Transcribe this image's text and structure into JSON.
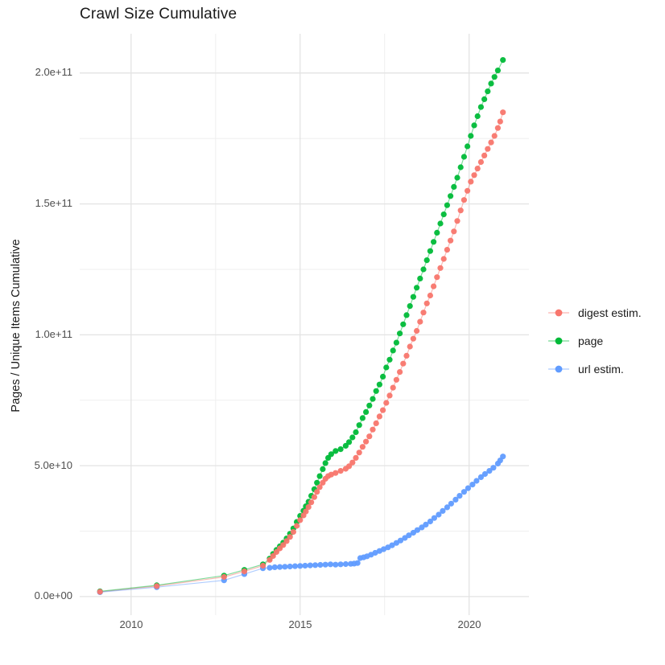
{
  "title": "Crawl Size Cumulative",
  "y_axis_title": "Pages / Unique Items Cumulative",
  "x_ticks": [
    "2010",
    "2015",
    "2020"
  ],
  "y_ticks": [
    "0.0e+00",
    "5.0e+10",
    "1.0e+11",
    "1.5e+11",
    "2.0e+11"
  ],
  "legend": {
    "items": [
      {
        "label": "digest estim.",
        "color": "#F8766D"
      },
      {
        "label": "page",
        "color": "#00BA38"
      },
      {
        "label": "url estim.",
        "color": "#619CFF"
      }
    ]
  },
  "colors": {
    "background": "#ffffff",
    "grid_major": "#e3e3e3",
    "grid_minor": "#efefef",
    "tick_text": "#4d4d4d",
    "title_text": "#1a1a1a"
  },
  "chart_data": {
    "type": "scatter",
    "title": "Crawl Size Cumulative",
    "xlabel": "",
    "ylabel": "Pages / Unique Items Cumulative",
    "xlim": [
      2008.48,
      2021.77
    ],
    "ylim": [
      -7100000000.0,
      215000000000.0
    ],
    "x_major_ticks": [
      2010,
      2015,
      2020
    ],
    "x_minor_ticks": [
      2012.5,
      2017.5
    ],
    "y_major_ticks": [
      0,
      50000000000.0,
      100000000000.0,
      150000000000.0,
      200000000000.0
    ],
    "y_minor_ticks": [
      25000000000.0,
      75000000000.0,
      125000000000.0,
      175000000000.0
    ],
    "grid": true,
    "legend_position": "right",
    "series": [
      {
        "name": "digest estim.",
        "color": "#F8766D",
        "points": [
          [
            2009.08,
            1800000000.0
          ],
          [
            2010.76,
            4000000000.0
          ],
          [
            2012.75,
            7500000000.0
          ],
          [
            2013.35,
            9600000000.0
          ],
          [
            2013.9,
            11800000000.0
          ],
          [
            2014.1,
            14000000000.0
          ],
          [
            2014.2,
            15500000000.0
          ],
          [
            2014.3,
            17000000000.0
          ],
          [
            2014.4,
            18400000000.0
          ],
          [
            2014.5,
            19700000000.0
          ],
          [
            2014.6,
            21200000000.0
          ],
          [
            2014.7,
            22800000000.0
          ],
          [
            2014.8,
            24700000000.0
          ],
          [
            2014.9,
            27000000000.0
          ],
          [
            2015.0,
            29200000000.0
          ],
          [
            2015.1,
            31000000000.0
          ],
          [
            2015.17,
            32500000000.0
          ],
          [
            2015.25,
            34200000000.0
          ],
          [
            2015.33,
            36000000000.0
          ],
          [
            2015.42,
            38000000000.0
          ],
          [
            2015.5,
            40000000000.0
          ],
          [
            2015.58,
            41800000000.0
          ],
          [
            2015.67,
            43500000000.0
          ],
          [
            2015.75,
            45000000000.0
          ],
          [
            2015.83,
            46000000000.0
          ],
          [
            2015.92,
            46600000000.0
          ],
          [
            2016.05,
            47200000000.0
          ],
          [
            2016.2,
            48000000000.0
          ],
          [
            2016.35,
            48800000000.0
          ],
          [
            2016.45,
            49800000000.0
          ],
          [
            2016.55,
            51200000000.0
          ],
          [
            2016.65,
            53000000000.0
          ],
          [
            2016.75,
            55000000000.0
          ],
          [
            2016.85,
            57200000000.0
          ],
          [
            2016.95,
            59200000000.0
          ],
          [
            2017.05,
            61200000000.0
          ],
          [
            2017.15,
            63800000000.0
          ],
          [
            2017.25,
            66200000000.0
          ],
          [
            2017.35,
            68800000000.0
          ],
          [
            2017.45,
            71200000000.0
          ],
          [
            2017.55,
            74000000000.0
          ],
          [
            2017.65,
            76800000000.0
          ],
          [
            2017.75,
            79800000000.0
          ],
          [
            2017.85,
            82800000000.0
          ],
          [
            2017.95,
            85800000000.0
          ],
          [
            2018.05,
            89000000000.0
          ],
          [
            2018.15,
            92000000000.0
          ],
          [
            2018.25,
            95500000000.0
          ],
          [
            2018.35,
            98500000000.0
          ],
          [
            2018.45,
            101500000000.0
          ],
          [
            2018.55,
            105000000000.0
          ],
          [
            2018.65,
            108500000000.0
          ],
          [
            2018.75,
            112000000000.0
          ],
          [
            2018.85,
            115000000000.0
          ],
          [
            2018.95,
            118500000000.0
          ],
          [
            2019.05,
            122000000000.0
          ],
          [
            2019.15,
            125500000000.0
          ],
          [
            2019.25,
            129000000000.0
          ],
          [
            2019.35,
            132500000000.0
          ],
          [
            2019.45,
            136000000000.0
          ],
          [
            2019.55,
            139500000000.0
          ],
          [
            2019.65,
            143500000000.0
          ],
          [
            2019.75,
            147500000000.0
          ],
          [
            2019.85,
            151500000000.0
          ],
          [
            2019.95,
            155000000000.0
          ],
          [
            2020.05,
            158500000000.0
          ],
          [
            2020.15,
            161000000000.0
          ],
          [
            2020.25,
            163500000000.0
          ],
          [
            2020.35,
            166000000000.0
          ],
          [
            2020.45,
            168500000000.0
          ],
          [
            2020.55,
            171000000000.0
          ],
          [
            2020.65,
            173500000000.0
          ],
          [
            2020.75,
            176000000000.0
          ],
          [
            2020.85,
            179000000000.0
          ],
          [
            2020.92,
            181500000000.0
          ],
          [
            2021.0,
            185000000000.0
          ]
        ]
      },
      {
        "name": "page",
        "color": "#00BA38",
        "points": [
          [
            2009.08,
            2000000000.0
          ],
          [
            2010.76,
            4300000000.0
          ],
          [
            2012.75,
            8000000000.0
          ],
          [
            2013.35,
            10200000000.0
          ],
          [
            2013.9,
            12300000000.0
          ],
          [
            2014.1,
            14500000000.0
          ],
          [
            2014.2,
            16300000000.0
          ],
          [
            2014.3,
            17800000000.0
          ],
          [
            2014.4,
            19200000000.0
          ],
          [
            2014.5,
            20600000000.0
          ],
          [
            2014.6,
            22200000000.0
          ],
          [
            2014.7,
            24000000000.0
          ],
          [
            2014.8,
            26000000000.0
          ],
          [
            2014.9,
            28500000000.0
          ],
          [
            2015.0,
            30800000000.0
          ],
          [
            2015.1,
            32800000000.0
          ],
          [
            2015.17,
            34500000000.0
          ],
          [
            2015.25,
            36200000000.0
          ],
          [
            2015.33,
            38500000000.0
          ],
          [
            2015.42,
            41000000000.0
          ],
          [
            2015.5,
            43500000000.0
          ],
          [
            2015.58,
            46000000000.0
          ],
          [
            2015.67,
            48700000000.0
          ],
          [
            2015.75,
            51000000000.0
          ],
          [
            2015.83,
            53000000000.0
          ],
          [
            2015.92,
            54400000000.0
          ],
          [
            2016.05,
            55600000000.0
          ],
          [
            2016.2,
            56300000000.0
          ],
          [
            2016.35,
            57600000000.0
          ],
          [
            2016.45,
            59000000000.0
          ],
          [
            2016.55,
            60800000000.0
          ],
          [
            2016.65,
            62800000000.0
          ],
          [
            2016.75,
            65500000000.0
          ],
          [
            2016.85,
            68200000000.0
          ],
          [
            2016.95,
            70500000000.0
          ],
          [
            2017.05,
            73000000000.0
          ],
          [
            2017.15,
            75500000000.0
          ],
          [
            2017.25,
            78500000000.0
          ],
          [
            2017.35,
            81000000000.0
          ],
          [
            2017.45,
            84000000000.0
          ],
          [
            2017.55,
            87500000000.0
          ],
          [
            2017.65,
            90500000000.0
          ],
          [
            2017.75,
            94000000000.0
          ],
          [
            2017.85,
            97000000000.0
          ],
          [
            2017.95,
            100500000000.0
          ],
          [
            2018.05,
            104000000000.0
          ],
          [
            2018.15,
            107500000000.0
          ],
          [
            2018.25,
            111000000000.0
          ],
          [
            2018.35,
            114500000000.0
          ],
          [
            2018.45,
            118000000000.0
          ],
          [
            2018.55,
            121500000000.0
          ],
          [
            2018.65,
            125000000000.0
          ],
          [
            2018.75,
            128500000000.0
          ],
          [
            2018.85,
            132000000000.0
          ],
          [
            2018.95,
            135500000000.0
          ],
          [
            2019.05,
            139000000000.0
          ],
          [
            2019.15,
            142500000000.0
          ],
          [
            2019.25,
            146000000000.0
          ],
          [
            2019.35,
            149500000000.0
          ],
          [
            2019.45,
            153000000000.0
          ],
          [
            2019.55,
            156500000000.0
          ],
          [
            2019.65,
            160000000000.0
          ],
          [
            2019.75,
            164000000000.0
          ],
          [
            2019.85,
            168000000000.0
          ],
          [
            2019.95,
            172000000000.0
          ],
          [
            2020.05,
            176000000000.0
          ],
          [
            2020.15,
            180000000000.0
          ],
          [
            2020.25,
            183500000000.0
          ],
          [
            2020.35,
            187000000000.0
          ],
          [
            2020.45,
            190000000000.0
          ],
          [
            2020.55,
            193000000000.0
          ],
          [
            2020.65,
            196000000000.0
          ],
          [
            2020.75,
            198500000000.0
          ],
          [
            2020.85,
            201000000000.0
          ],
          [
            2021.0,
            205000000000.0
          ]
        ]
      },
      {
        "name": "url estim.",
        "color": "#619CFF",
        "points": [
          [
            2009.08,
            1700000000.0
          ],
          [
            2010.76,
            3600000000.0
          ],
          [
            2012.75,
            6200000000.0
          ],
          [
            2013.35,
            8600000000.0
          ],
          [
            2013.9,
            10800000000.0
          ],
          [
            2014.1,
            11000000000.0
          ],
          [
            2014.25,
            11200000000.0
          ],
          [
            2014.4,
            11300000000.0
          ],
          [
            2014.55,
            11400000000.0
          ],
          [
            2014.7,
            11500000000.0
          ],
          [
            2014.85,
            11600000000.0
          ],
          [
            2015.0,
            11700000000.0
          ],
          [
            2015.15,
            11800000000.0
          ],
          [
            2015.3,
            11900000000.0
          ],
          [
            2015.45,
            12000000000.0
          ],
          [
            2015.6,
            12100000000.0
          ],
          [
            2015.75,
            12200000000.0
          ],
          [
            2015.9,
            12300000000.0
          ],
          [
            2016.05,
            12200000000.0
          ],
          [
            2016.2,
            12300000000.0
          ],
          [
            2016.35,
            12400000000.0
          ],
          [
            2016.5,
            12500000000.0
          ],
          [
            2016.6,
            12600000000.0
          ],
          [
            2016.7,
            12800000000.0
          ],
          [
            2016.78,
            14700000000.0
          ],
          [
            2016.88,
            15000000000.0
          ],
          [
            2016.98,
            15400000000.0
          ],
          [
            2017.1,
            16000000000.0
          ],
          [
            2017.22,
            16700000000.0
          ],
          [
            2017.35,
            17400000000.0
          ],
          [
            2017.47,
            18100000000.0
          ],
          [
            2017.6,
            18800000000.0
          ],
          [
            2017.72,
            19600000000.0
          ],
          [
            2017.85,
            20500000000.0
          ],
          [
            2017.97,
            21400000000.0
          ],
          [
            2018.1,
            22400000000.0
          ],
          [
            2018.22,
            23400000000.0
          ],
          [
            2018.35,
            24400000000.0
          ],
          [
            2018.47,
            25400000000.0
          ],
          [
            2018.6,
            26400000000.0
          ],
          [
            2018.72,
            27500000000.0
          ],
          [
            2018.85,
            28700000000.0
          ],
          [
            2018.97,
            30000000000.0
          ],
          [
            2019.1,
            31300000000.0
          ],
          [
            2019.22,
            32700000000.0
          ],
          [
            2019.35,
            34100000000.0
          ],
          [
            2019.47,
            35500000000.0
          ],
          [
            2019.6,
            37000000000.0
          ],
          [
            2019.72,
            38500000000.0
          ],
          [
            2019.85,
            40000000000.0
          ],
          [
            2019.97,
            41400000000.0
          ],
          [
            2020.1,
            42800000000.0
          ],
          [
            2020.22,
            44200000000.0
          ],
          [
            2020.35,
            45600000000.0
          ],
          [
            2020.47,
            46800000000.0
          ],
          [
            2020.6,
            48000000000.0
          ],
          [
            2020.72,
            49200000000.0
          ],
          [
            2020.85,
            50800000000.0
          ],
          [
            2020.92,
            52000000000.0
          ],
          [
            2021.0,
            53500000000.0
          ]
        ]
      }
    ]
  }
}
